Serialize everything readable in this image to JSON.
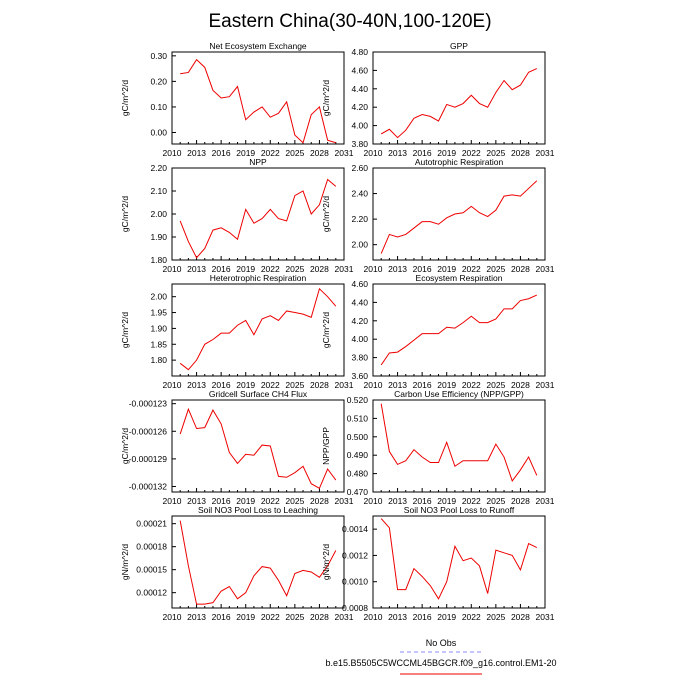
{
  "title": "Eastern China(30-40N,100-120E)",
  "legend": {
    "entries": [
      "No Obs",
      "b.e15.B5505C5WCCML45BGCR.f09_g16.control.EM1-20"
    ],
    "colors": [
      "#8c8cff",
      "#ee0000"
    ]
  },
  "chart_data": [
    {
      "type": "line",
      "title": "Net Ecosystem Exchange",
      "ylabel": "gC/m^2/d",
      "xlim": [
        2010,
        2031
      ],
      "ylim": [
        -0.045,
        0.315
      ],
      "xticks": [
        2010,
        2013,
        2016,
        2019,
        2022,
        2025,
        2028,
        2031
      ],
      "yticks": [
        -0.0,
        0.1,
        0.2,
        0.3
      ],
      "ytick_labels": [
        "0.00",
        "0.10",
        "0.20",
        "0.30"
      ],
      "x": [
        2011,
        2012,
        2013,
        2014,
        2015,
        2016,
        2017,
        2018,
        2019,
        2020,
        2021,
        2022,
        2023,
        2024,
        2025,
        2026,
        2027,
        2028,
        2029,
        2030
      ],
      "series": [
        {
          "name": "b.e15.B5505C5WCCML45BGCR.f09_g16.control.EM1-20",
          "color": "#ee0000",
          "values": [
            0.23,
            0.235,
            0.285,
            0.255,
            0.165,
            0.135,
            0.14,
            0.18,
            0.05,
            0.08,
            0.1,
            0.06,
            0.075,
            0.12,
            -0.01,
            -0.04,
            0.07,
            0.1,
            -0.03,
            -0.04
          ]
        }
      ]
    },
    {
      "type": "line",
      "title": "GPP",
      "ylabel": "gC/m^2/d",
      "xlim": [
        2010,
        2031
      ],
      "ylim": [
        3.8,
        4.8
      ],
      "xticks": [
        2010,
        2013,
        2016,
        2019,
        2022,
        2025,
        2028,
        2031
      ],
      "yticks": [
        3.8,
        4.0,
        4.2,
        4.4,
        4.6,
        4.8
      ],
      "ytick_labels": [
        "3.80",
        "4.00",
        "4.20",
        "4.40",
        "4.60",
        "4.80"
      ],
      "x": [
        2011,
        2012,
        2013,
        2014,
        2015,
        2016,
        2017,
        2018,
        2019,
        2020,
        2021,
        2022,
        2023,
        2024,
        2025,
        2026,
        2027,
        2028,
        2029,
        2030
      ],
      "series": [
        {
          "name": "b.e15.B5505C5WCCML45BGCR.f09_g16.control.EM1-20",
          "color": "#ee0000",
          "values": [
            3.91,
            3.96,
            3.87,
            3.95,
            4.08,
            4.12,
            4.1,
            4.05,
            4.23,
            4.2,
            4.24,
            4.33,
            4.24,
            4.2,
            4.36,
            4.49,
            4.39,
            4.44,
            4.58,
            4.62
          ]
        }
      ]
    },
    {
      "type": "line",
      "title": "NPP",
      "ylabel": "gC/m^2/d",
      "xlim": [
        2010,
        2031
      ],
      "ylim": [
        1.8,
        2.2
      ],
      "xticks": [
        2010,
        2013,
        2016,
        2019,
        2022,
        2025,
        2028,
        2031
      ],
      "yticks": [
        1.8,
        1.9,
        2.0,
        2.1,
        2.2
      ],
      "ytick_labels": [
        "1.80",
        "1.90",
        "2.00",
        "2.10",
        "2.20"
      ],
      "x": [
        2011,
        2012,
        2013,
        2014,
        2015,
        2016,
        2017,
        2018,
        2019,
        2020,
        2021,
        2022,
        2023,
        2024,
        2025,
        2026,
        2027,
        2028,
        2029,
        2030
      ],
      "series": [
        {
          "name": "b.e15.B5505C5WCCML45BGCR.f09_g16.control.EM1-20",
          "color": "#ee0000",
          "values": [
            1.97,
            1.88,
            1.81,
            1.85,
            1.93,
            1.94,
            1.92,
            1.89,
            2.02,
            1.96,
            1.98,
            2.02,
            1.98,
            1.97,
            2.08,
            2.1,
            2.0,
            2.04,
            2.15,
            2.12
          ]
        }
      ]
    },
    {
      "type": "line",
      "title": "Autotrophic Respiration",
      "ylabel": "gC/m^2/d",
      "xlim": [
        2010,
        2031
      ],
      "ylim": [
        1.88,
        2.6
      ],
      "xticks": [
        2010,
        2013,
        2016,
        2019,
        2022,
        2025,
        2028,
        2031
      ],
      "yticks": [
        2.0,
        2.2,
        2.4,
        2.6
      ],
      "ytick_labels": [
        "2.00",
        "2.20",
        "2.40",
        "2.60"
      ],
      "x": [
        2011,
        2012,
        2013,
        2014,
        2015,
        2016,
        2017,
        2018,
        2019,
        2020,
        2021,
        2022,
        2023,
        2024,
        2025,
        2026,
        2027,
        2028,
        2029,
        2030
      ],
      "series": [
        {
          "name": "b.e15.B5505C5WCCML45BGCR.f09_g16.control.EM1-20",
          "color": "#ee0000",
          "values": [
            1.93,
            2.08,
            2.06,
            2.08,
            2.13,
            2.18,
            2.18,
            2.16,
            2.21,
            2.24,
            2.25,
            2.3,
            2.25,
            2.22,
            2.27,
            2.38,
            2.39,
            2.38,
            2.44,
            2.5
          ]
        }
      ]
    },
    {
      "type": "line",
      "title": "Heterotrophic Respiration",
      "ylabel": "gC/m^2/d",
      "xlim": [
        2010,
        2031
      ],
      "ylim": [
        1.75,
        2.04
      ],
      "xticks": [
        2010,
        2013,
        2016,
        2019,
        2022,
        2025,
        2028,
        2031
      ],
      "yticks": [
        1.8,
        1.85,
        1.9,
        1.95,
        2.0
      ],
      "ytick_labels": [
        "1.80",
        "1.85",
        "1.90",
        "1.95",
        "2.00"
      ],
      "x": [
        2011,
        2012,
        2013,
        2014,
        2015,
        2016,
        2017,
        2018,
        2019,
        2020,
        2021,
        2022,
        2023,
        2024,
        2025,
        2026,
        2027,
        2028,
        2029,
        2030
      ],
      "series": [
        {
          "name": "b.e15.B5505C5WCCML45BGCR.f09_g16.control.EM1-20",
          "color": "#ee0000",
          "values": [
            1.79,
            1.77,
            1.8,
            1.85,
            1.865,
            1.885,
            1.885,
            1.91,
            1.925,
            1.88,
            1.93,
            1.94,
            1.925,
            1.955,
            1.95,
            1.945,
            1.935,
            2.025,
            2.0,
            1.97
          ]
        }
      ]
    },
    {
      "type": "line",
      "title": "Ecosystem Respiration",
      "ylabel": "gC/m^2/d",
      "xlim": [
        2010,
        2031
      ],
      "ylim": [
        3.6,
        4.6
      ],
      "xticks": [
        2010,
        2013,
        2016,
        2019,
        2022,
        2025,
        2028,
        2031
      ],
      "yticks": [
        3.6,
        3.8,
        4.0,
        4.2,
        4.4,
        4.6
      ],
      "ytick_labels": [
        "3.60",
        "3.80",
        "4.00",
        "4.20",
        "4.40",
        "4.60"
      ],
      "x": [
        2011,
        2012,
        2013,
        2014,
        2015,
        2016,
        2017,
        2018,
        2019,
        2020,
        2021,
        2022,
        2023,
        2024,
        2025,
        2026,
        2027,
        2028,
        2029,
        2030
      ],
      "series": [
        {
          "name": "b.e15.B5505C5WCCML45BGCR.f09_g16.control.EM1-20",
          "color": "#ee0000",
          "values": [
            3.72,
            3.85,
            3.86,
            3.92,
            3.99,
            4.06,
            4.06,
            4.06,
            4.13,
            4.12,
            4.18,
            4.25,
            4.18,
            4.18,
            4.22,
            4.33,
            4.33,
            4.42,
            4.44,
            4.48
          ]
        }
      ]
    },
    {
      "type": "line",
      "title": "Gridcell Surface CH4 Flux",
      "ylabel": "gC/m^2/d",
      "xlim": [
        2010,
        2031
      ],
      "ylim": [
        -0.0001326,
        -0.0001226
      ],
      "xticks": [
        2010,
        2013,
        2016,
        2019,
        2022,
        2025,
        2028,
        2031
      ],
      "yticks": [
        -0.000132,
        -0.000129,
        -0.000126,
        -0.000123
      ],
      "ytick_labels": [
        "-0.000132",
        "-0.000129",
        "-0.000126",
        "-0.000123"
      ],
      "x": [
        2011,
        2012,
        2013,
        2014,
        2015,
        2016,
        2017,
        2018,
        2019,
        2020,
        2021,
        2022,
        2023,
        2024,
        2025,
        2026,
        2027,
        2028,
        2029,
        2030
      ],
      "series": [
        {
          "name": "b.e15.B5505C5WCCML45BGCR.f09_g16.control.EM1-20",
          "color": "#ee0000",
          "values": [
            -0.0001263,
            -0.0001236,
            -0.0001257,
            -0.0001256,
            -0.0001237,
            -0.0001252,
            -0.0001283,
            -0.0001295,
            -0.0001285,
            -0.0001286,
            -0.0001275,
            -0.0001276,
            -0.0001309,
            -0.000131,
            -0.0001305,
            -0.0001298,
            -0.0001317,
            -0.0001322,
            -0.0001301,
            -0.0001313
          ]
        }
      ]
    },
    {
      "type": "line",
      "title": "Carbon Use Efficiency (NPP/GPP)",
      "ylabel": "NPP/GPP",
      "xlim": [
        2010,
        2031
      ],
      "ylim": [
        0.47,
        0.52
      ],
      "xticks": [
        2010,
        2013,
        2016,
        2019,
        2022,
        2025,
        2028,
        2031
      ],
      "yticks": [
        0.47,
        0.48,
        0.49,
        0.5,
        0.51,
        0.52
      ],
      "ytick_labels": [
        "0.470",
        "0.480",
        "0.490",
        "0.500",
        "0.510",
        "0.520"
      ],
      "x": [
        2011,
        2012,
        2013,
        2014,
        2015,
        2016,
        2017,
        2018,
        2019,
        2020,
        2021,
        2022,
        2023,
        2024,
        2025,
        2026,
        2027,
        2028,
        2029,
        2030
      ],
      "series": [
        {
          "name": "b.e15.B5505C5WCCML45BGCR.f09_g16.control.EM1-20",
          "color": "#ee0000",
          "values": [
            0.518,
            0.492,
            0.485,
            0.487,
            0.493,
            0.489,
            0.486,
            0.486,
            0.497,
            0.484,
            0.487,
            0.487,
            0.487,
            0.487,
            0.496,
            0.489,
            0.476,
            0.482,
            0.489,
            0.479
          ]
        }
      ]
    },
    {
      "type": "line",
      "title": "Soil NO3 Pool Loss to Leaching",
      "ylabel": "gN/m^2/d",
      "xlim": [
        2010,
        2031
      ],
      "ylim": [
        0.0001,
        0.00022
      ],
      "xticks": [
        2010,
        2013,
        2016,
        2019,
        2022,
        2025,
        2028,
        2031
      ],
      "yticks": [
        0.00012,
        0.00015,
        0.00018,
        0.00021
      ],
      "ytick_labels": [
        "0.00012",
        "0.00015",
        "0.00018",
        "0.00021"
      ],
      "x": [
        2011,
        2012,
        2013,
        2014,
        2015,
        2016,
        2017,
        2018,
        2019,
        2020,
        2021,
        2022,
        2023,
        2024,
        2025,
        2026,
        2027,
        2028,
        2029,
        2030
      ],
      "series": [
        {
          "name": "b.e15.B5505C5WCCML45BGCR.f09_g16.control.EM1-20",
          "color": "#ee0000",
          "values": [
            0.000214,
            0.000155,
            0.000105,
            0.000105,
            0.000107,
            0.000122,
            0.000128,
            0.000112,
            0.00012,
            0.000142,
            0.000154,
            0.000152,
            0.000136,
            0.000116,
            0.000145,
            0.000149,
            0.000147,
            0.00014,
            0.000155,
            0.000175
          ]
        }
      ]
    },
    {
      "type": "line",
      "title": "Soil NO3 Pool Loss to Runoff",
      "ylabel": "gN/m^2/d",
      "xlim": [
        2010,
        2031
      ],
      "ylim": [
        0.0008,
        0.0015
      ],
      "xticks": [
        2010,
        2013,
        2016,
        2019,
        2022,
        2025,
        2028,
        2031
      ],
      "yticks": [
        0.0008,
        0.001,
        0.0012,
        0.0014
      ],
      "ytick_labels": [
        "0.0008",
        "0.0010",
        "0.0012",
        "0.0014"
      ],
      "x": [
        2011,
        2012,
        2013,
        2014,
        2015,
        2016,
        2017,
        2018,
        2019,
        2020,
        2021,
        2022,
        2023,
        2024,
        2025,
        2026,
        2027,
        2028,
        2029,
        2030
      ],
      "series": [
        {
          "name": "b.e15.B5505C5WCCML45BGCR.f09_g16.control.EM1-20",
          "color": "#ee0000",
          "values": [
            0.00148,
            0.00141,
            0.00094,
            0.00094,
            0.0011,
            0.00104,
            0.00097,
            0.00087,
            0.001,
            0.00127,
            0.00116,
            0.00118,
            0.00112,
            0.00091,
            0.00124,
            0.00122,
            0.0012,
            0.00109,
            0.00129,
            0.00126
          ]
        }
      ]
    }
  ]
}
